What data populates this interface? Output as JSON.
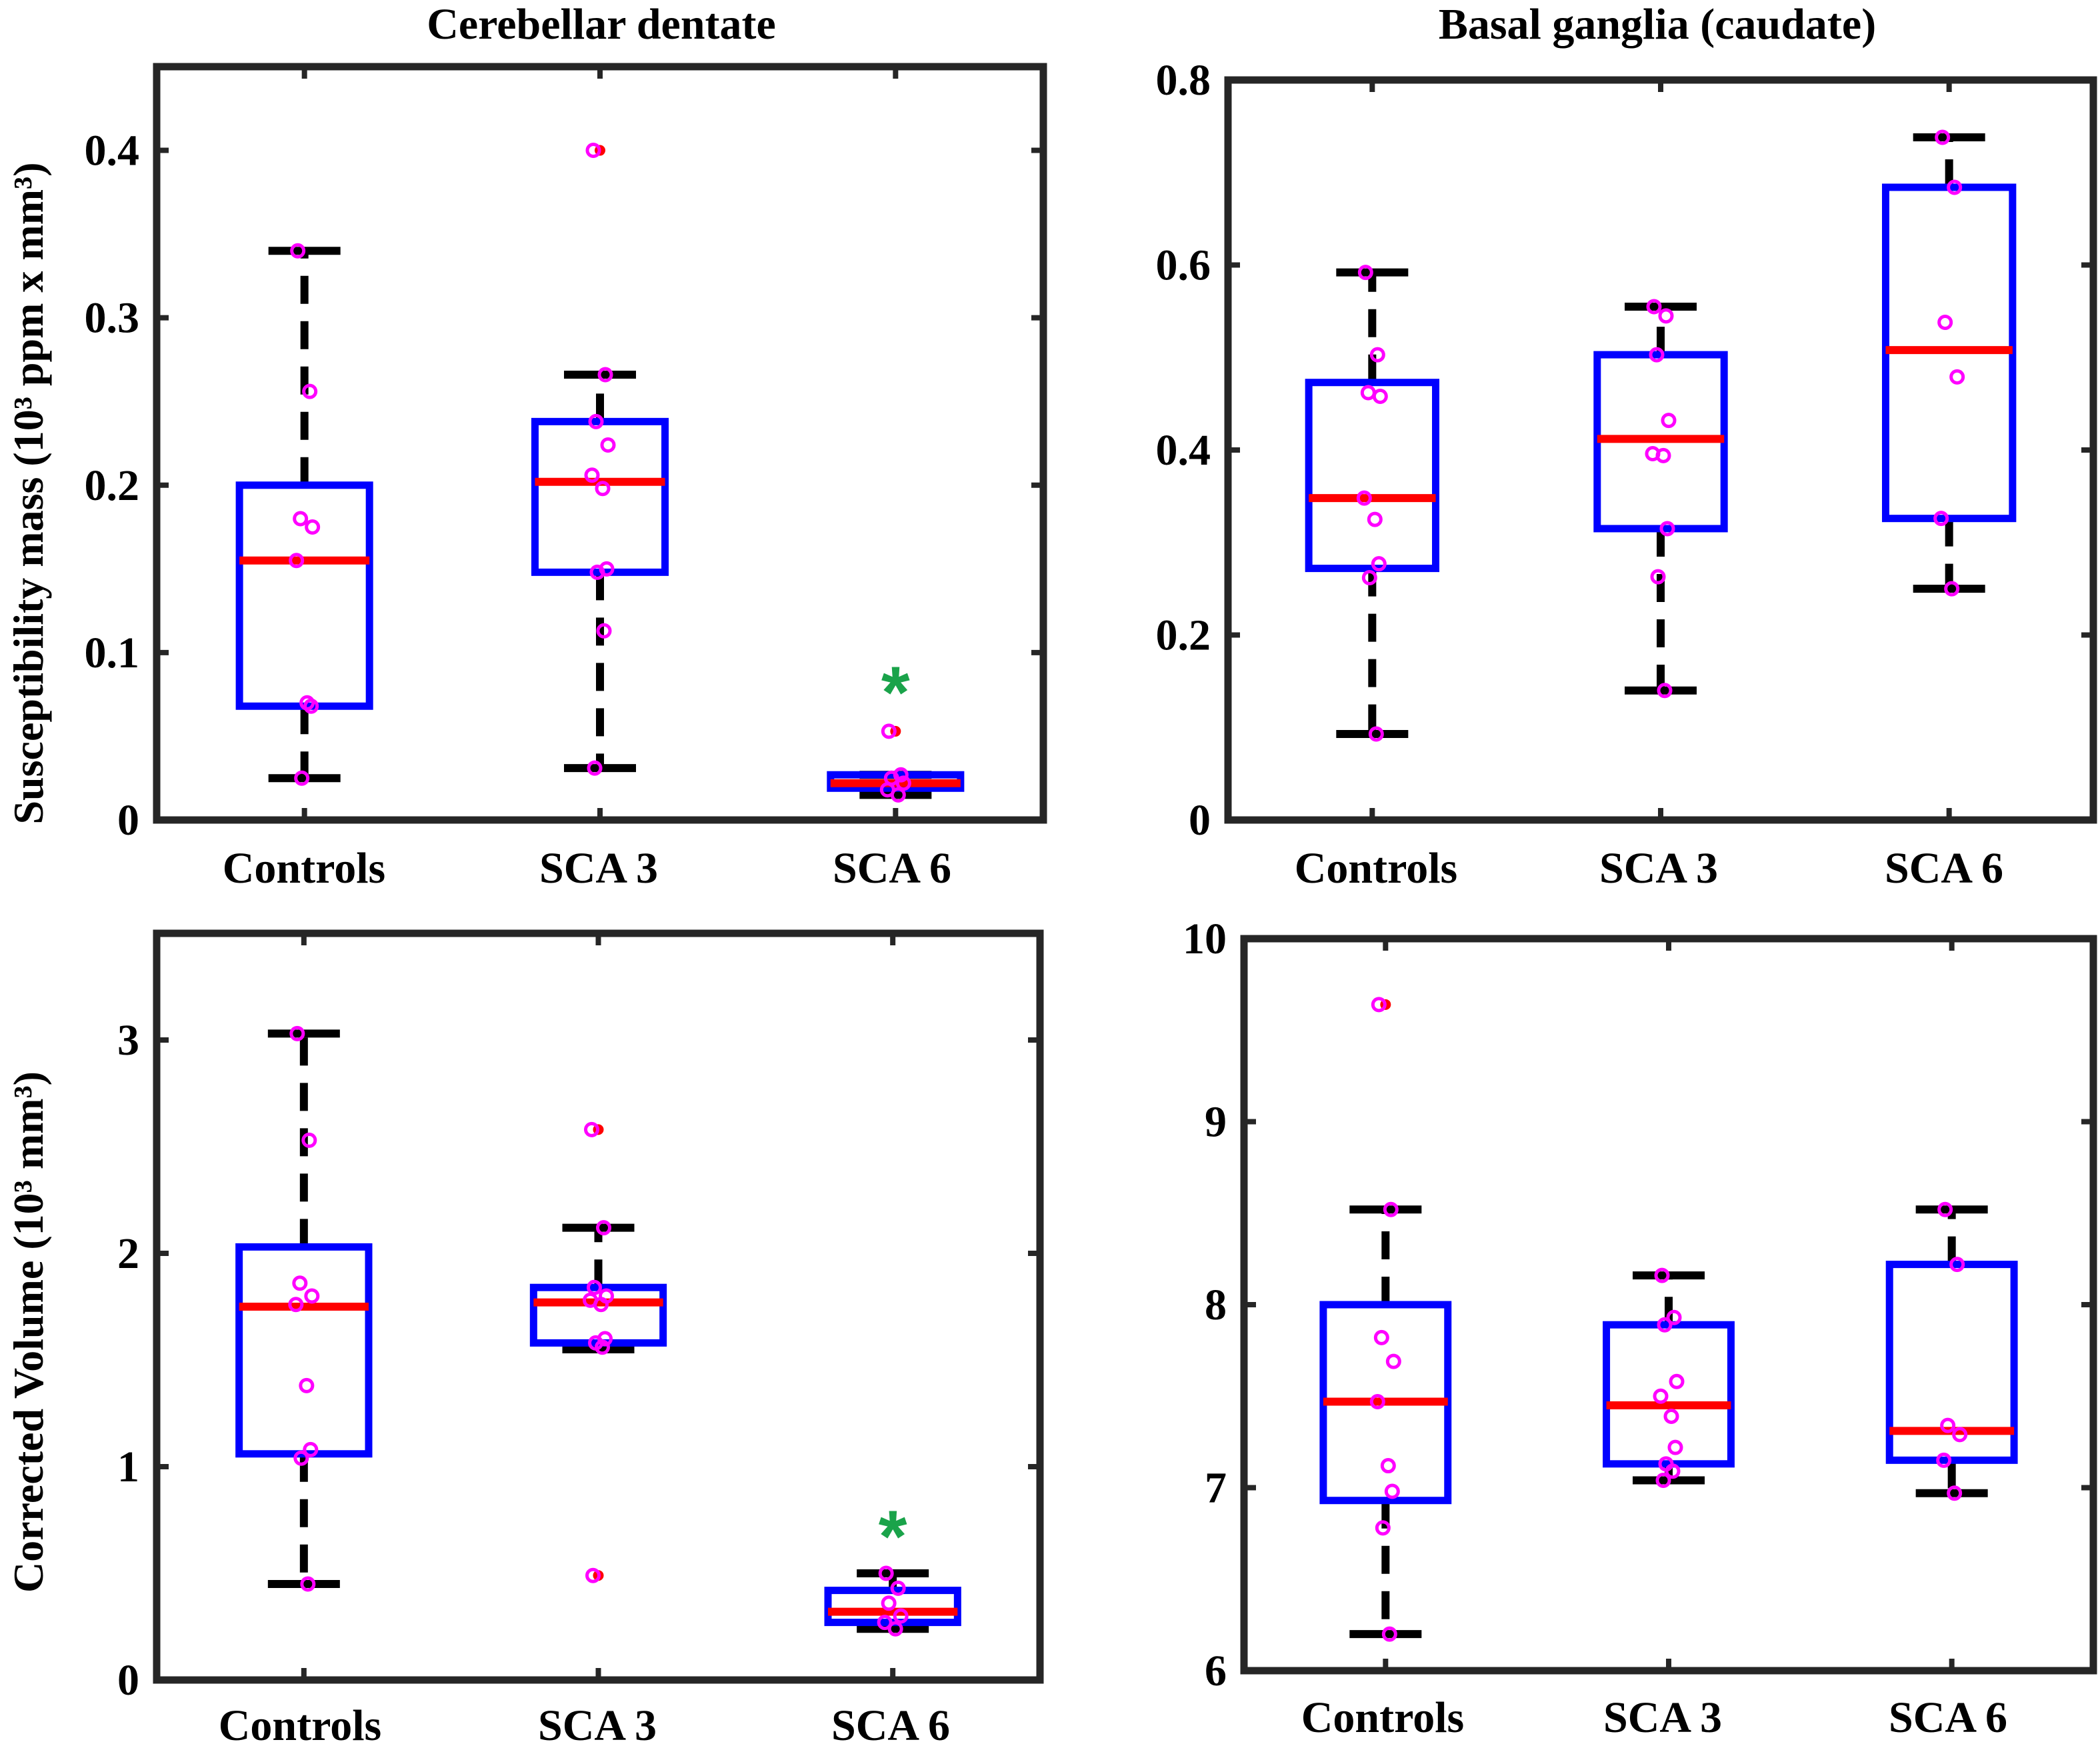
{
  "colors": {
    "box": "#0000ff",
    "median": "#ff0000",
    "whisker": "#000000",
    "point": "#ff00ff",
    "outlier": "#ff0000",
    "significance": "#1aa34a"
  },
  "chart_data": [
    {
      "id": "dentate-susceptibility",
      "type": "box",
      "title": "Cerebellar dentate",
      "ylabel": "Susceptibility mass (10³ ppm x mm³)",
      "ylim": [
        0,
        0.45
      ],
      "yticks": [
        0,
        0.1,
        0.2,
        0.3,
        0.4
      ],
      "ytick_labels": [
        "0",
        "0.1",
        "0.2",
        "0.3",
        "0.4"
      ],
      "categories": [
        "Controls",
        "SCA 3",
        "SCA 6"
      ],
      "boxes": [
        {
          "q1": 0.068,
          "median": 0.155,
          "q3": 0.2,
          "whisker_low": 0.025,
          "whisker_high": 0.34,
          "outliers": [],
          "points": [
            0.34,
            0.256,
            0.18,
            0.175,
            0.155,
            0.07,
            0.068,
            0.025
          ]
        },
        {
          "q1": 0.148,
          "median": 0.202,
          "q3": 0.238,
          "whisker_low": 0.031,
          "whisker_high": 0.266,
          "outliers": [
            0.4
          ],
          "points": [
            0.4,
            0.266,
            0.238,
            0.224,
            0.206,
            0.198,
            0.15,
            0.148,
            0.113,
            0.031
          ]
        },
        {
          "q1": 0.019,
          "median": 0.022,
          "q3": 0.027,
          "whisker_low": 0.015,
          "whisker_high": 0.027,
          "outliers": [
            0.053
          ],
          "points": [
            0.053,
            0.027,
            0.025,
            0.022,
            0.018,
            0.015
          ]
        }
      ],
      "significance": [
        {
          "category": "SCA 6",
          "label": "*",
          "y": 0.077
        }
      ]
    },
    {
      "id": "caudate-susceptibility",
      "type": "box",
      "title": "Basal ganglia (caudate)",
      "ylabel": "",
      "ylim": [
        0,
        0.8
      ],
      "yticks": [
        0,
        0.2,
        0.4,
        0.6,
        0.8
      ],
      "ytick_labels": [
        "0",
        "0.2",
        "0.4",
        "0.6",
        "0.8"
      ],
      "categories": [
        "Controls",
        "SCA 3",
        "SCA 6"
      ],
      "boxes": [
        {
          "q1": 0.272,
          "median": 0.348,
          "q3": 0.473,
          "whisker_low": 0.093,
          "whisker_high": 0.592,
          "outliers": [],
          "points": [
            0.592,
            0.503,
            0.462,
            0.458,
            0.348,
            0.325,
            0.277,
            0.262,
            0.093
          ]
        },
        {
          "q1": 0.315,
          "median": 0.412,
          "q3": 0.503,
          "whisker_low": 0.14,
          "whisker_high": 0.555,
          "outliers": [],
          "points": [
            0.555,
            0.545,
            0.503,
            0.432,
            0.396,
            0.394,
            0.315,
            0.263,
            0.14
          ]
        },
        {
          "q1": 0.326,
          "median": 0.508,
          "q3": 0.684,
          "whisker_low": 0.25,
          "whisker_high": 0.738,
          "outliers": [],
          "points": [
            0.738,
            0.684,
            0.538,
            0.479,
            0.326,
            0.25
          ]
        }
      ],
      "significance": []
    },
    {
      "id": "dentate-volume",
      "type": "box",
      "title": "",
      "ylabel": "Corrected Volume (10³ mm³)",
      "ylim": [
        0,
        3.5
      ],
      "yticks": [
        0,
        1,
        2,
        3
      ],
      "ytick_labels": [
        "0",
        "1",
        "2",
        "3"
      ],
      "categories": [
        "Controls",
        "SCA 3",
        "SCA 6"
      ],
      "boxes": [
        {
          "q1": 1.06,
          "median": 1.75,
          "q3": 2.03,
          "whisker_low": 0.45,
          "whisker_high": 3.03,
          "outliers": [],
          "points": [
            3.03,
            2.53,
            1.86,
            1.8,
            1.76,
            1.38,
            1.08,
            1.04,
            0.45
          ]
        },
        {
          "q1": 1.58,
          "median": 1.77,
          "q3": 1.84,
          "whisker_low": 1.55,
          "whisker_high": 2.12,
          "outliers": [
            2.58,
            0.49
          ],
          "points": [
            2.58,
            2.12,
            1.84,
            1.8,
            1.78,
            1.76,
            1.6,
            1.58,
            1.56,
            0.49
          ]
        },
        {
          "q1": 0.27,
          "median": 0.32,
          "q3": 0.42,
          "whisker_low": 0.24,
          "whisker_high": 0.5,
          "outliers": [],
          "points": [
            0.5,
            0.43,
            0.36,
            0.3,
            0.27,
            0.24
          ]
        }
      ],
      "significance": [
        {
          "category": "SCA 6",
          "label": "*",
          "y": 0.68
        }
      ]
    },
    {
      "id": "caudate-volume",
      "type": "box",
      "title": "",
      "ylabel": "",
      "ylim": [
        6,
        10
      ],
      "yticks": [
        6,
        7,
        8,
        9,
        10
      ],
      "ytick_labels": [
        "6",
        "7",
        "8",
        "9",
        "10"
      ],
      "categories": [
        "Controls",
        "SCA 3",
        "SCA 6"
      ],
      "boxes": [
        {
          "q1": 6.93,
          "median": 7.47,
          "q3": 8.0,
          "whisker_low": 6.2,
          "whisker_high": 8.52,
          "outliers": [
            9.64
          ],
          "points": [
            9.64,
            8.52,
            7.82,
            7.69,
            7.47,
            7.12,
            6.98,
            6.78,
            6.2
          ]
        },
        {
          "q1": 7.13,
          "median": 7.45,
          "q3": 7.89,
          "whisker_low": 7.04,
          "whisker_high": 8.16,
          "outliers": [],
          "points": [
            8.16,
            7.93,
            7.89,
            7.58,
            7.5,
            7.39,
            7.22,
            7.13,
            7.09,
            7.04
          ]
        },
        {
          "q1": 7.15,
          "median": 7.31,
          "q3": 8.22,
          "whisker_low": 6.97,
          "whisker_high": 8.52,
          "outliers": [],
          "points": [
            8.52,
            8.22,
            7.34,
            7.29,
            7.15,
            6.97
          ]
        }
      ],
      "significance": []
    }
  ]
}
